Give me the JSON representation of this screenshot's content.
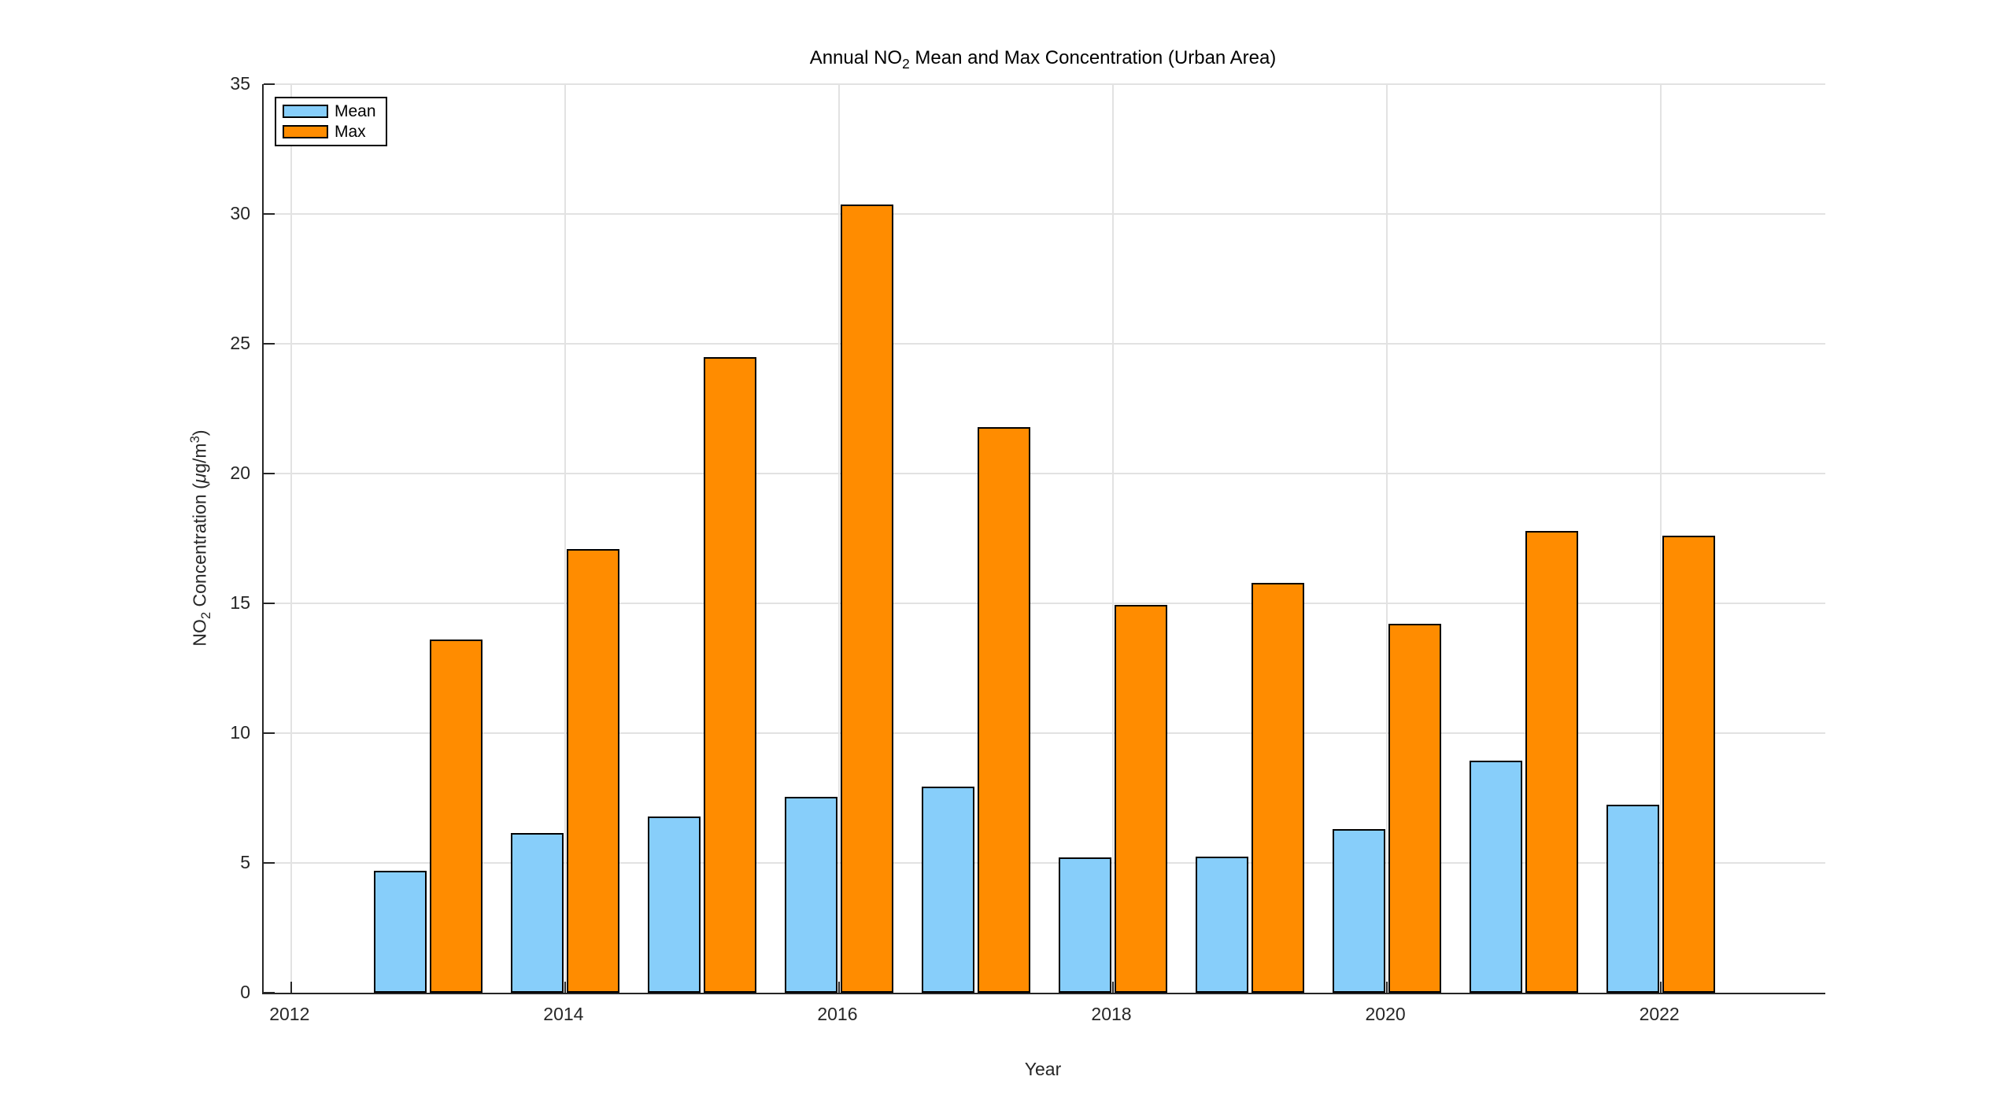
{
  "title": {
    "pre": "Annual NO",
    "sub": "2",
    "post": " Mean and Max Concentration (Urban Area)"
  },
  "axes": {
    "x_label": "Year",
    "y_label": {
      "pre": "NO",
      "sub": "2",
      "mid": " Concentration (",
      "mu": "μ",
      "unit": "g/m",
      "sup": "3",
      "close": ")"
    }
  },
  "legend": {
    "position": "top-left",
    "entries": [
      {
        "label": "Mean",
        "color": "#87CEFA"
      },
      {
        "label": "Max",
        "color": "#FF8C00"
      }
    ]
  },
  "colors": {
    "background": "#FFFFFF",
    "axis": "#262626",
    "grid": "#E2E2E2",
    "bar_edge": "#000000",
    "mean_fill": "#87CEFA",
    "max_fill": "#FF8C00"
  },
  "chart_data": {
    "type": "bar",
    "title": "Annual NO2 Mean and Max Concentration (Urban Area)",
    "xlabel": "Year",
    "ylabel": "NO2 Concentration (μg/m3)",
    "categories": [
      2013,
      2014,
      2015,
      2016,
      2017,
      2018,
      2019,
      2020,
      2021,
      2022
    ],
    "series": [
      {
        "name": "Mean",
        "color": "#87CEFA",
        "values": [
          4.7,
          6.15,
          6.8,
          7.55,
          7.95,
          5.2,
          5.25,
          6.3,
          8.95,
          7.25
        ]
      },
      {
        "name": "Max",
        "color": "#FF8C00",
        "values": [
          13.6,
          17.1,
          24.5,
          30.35,
          21.8,
          14.95,
          15.8,
          14.2,
          17.8,
          17.6
        ]
      }
    ],
    "xlim": [
      2011.8,
      2023.2
    ],
    "ylim": [
      0,
      35
    ],
    "xticks": [
      2012,
      2014,
      2016,
      2018,
      2020,
      2022
    ],
    "yticks": [
      0,
      5,
      10,
      15,
      20,
      25,
      30,
      35
    ],
    "bar_group_offset": 0.2045,
    "bar_width_years": 0.385,
    "grid": true,
    "legend_position": "top-left"
  }
}
